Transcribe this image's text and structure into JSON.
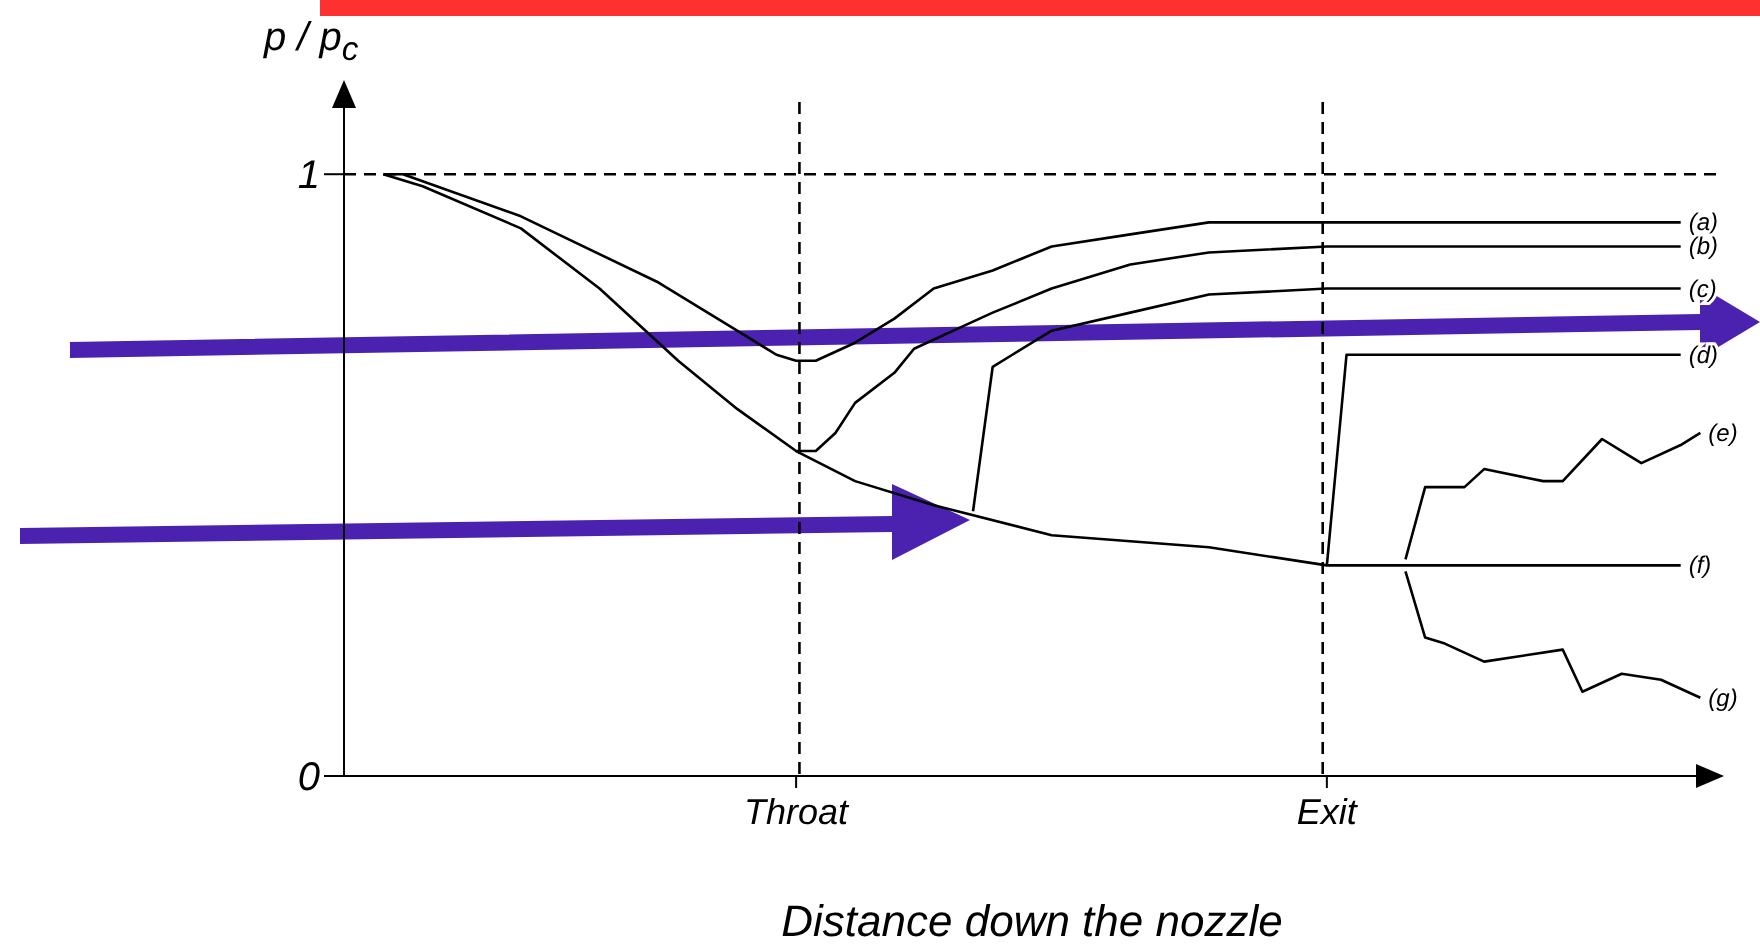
{
  "chart_data": {
    "type": "line",
    "ylabel": "p / p$_{c}$",
    "xlabel": "Distance down the nozzle",
    "categories": [
      null,
      null,
      null,
      null,
      null,
      null,
      null,
      null,
      null,
      null,
      null,
      null,
      null,
      null,
      null,
      null,
      null,
      null,
      null,
      null,
      null,
      null,
      null,
      "Throat",
      null,
      null,
      null,
      null,
      null,
      null,
      null,
      null,
      null,
      null,
      null,
      null,
      null,
      null,
      null,
      null,
      null,
      null,
      null,
      null,
      null,
      null,
      null,
      null,
      null,
      null,
      "Exit",
      null,
      null,
      null,
      null,
      null,
      null,
      null,
      null,
      null,
      null,
      null,
      null,
      null,
      null,
      null,
      null,
      null,
      null,
      null,
      null
    ],
    "ylim": [
      0,
      1.12
    ],
    "yticks": [
      0,
      1
    ],
    "line_style": "solid",
    "ref_lines": [
      {
        "axis": "y",
        "value": 1,
        "color": "#000000",
        "line_style": "dashed"
      },
      {
        "axis": "x",
        "value": "Throat",
        "color": "#000000",
        "line_style": "dashed"
      },
      {
        "axis": "x",
        "value": "Exit",
        "color": "#000000",
        "line_style": "dashed"
      }
    ],
    "series": [
      {
        "name": "(a)",
        "color": "#000000",
        "values": [
          null,
          null,
          1.0,
          1.0,
          null,
          null,
          null,
          null,
          null,
          0.93,
          null,
          null,
          null,
          null,
          null,
          null,
          0.82,
          null,
          null,
          null,
          0.74,
          null,
          0.7,
          0.69,
          0.69,
          null,
          0.72,
          null,
          0.76,
          null,
          0.81,
          null,
          null,
          0.84,
          null,
          null,
          0.88,
          null,
          null,
          null,
          0.9,
          null,
          null,
          null,
          0.92,
          null,
          null,
          null,
          null,
          null,
          0.92,
          null,
          null,
          null,
          null,
          null,
          null,
          null,
          null,
          null,
          null,
          null,
          null,
          null,
          null,
          null,
          null,
          null,
          0.92,
          null,
          null
        ]
      },
      {
        "name": "(b)",
        "color": "#000000",
        "values": [
          null,
          null,
          1.0,
          null,
          0.98,
          null,
          null,
          null,
          null,
          0.91,
          null,
          null,
          null,
          0.81,
          null,
          null,
          null,
          0.69,
          null,
          null,
          0.61,
          null,
          null,
          0.54,
          0.54,
          0.57,
          0.62,
          null,
          0.67,
          0.71,
          null,
          0.74,
          null,
          0.77,
          null,
          null,
          0.81,
          null,
          null,
          null,
          0.85,
          null,
          null,
          null,
          0.87,
          null,
          null,
          null,
          null,
          null,
          0.88,
          null,
          null,
          null,
          null,
          null,
          null,
          null,
          null,
          null,
          null,
          null,
          null,
          null,
          null,
          null,
          null,
          null,
          0.88,
          null,
          null
        ]
      },
      {
        "name": "(c)",
        "color": "#000000",
        "values": [
          null,
          null,
          null,
          null,
          null,
          null,
          null,
          null,
          null,
          null,
          null,
          null,
          null,
          null,
          null,
          null,
          null,
          null,
          null,
          null,
          null,
          null,
          null,
          null,
          null,
          null,
          null,
          null,
          null,
          null,
          null,
          null,
          0.44,
          0.68,
          0.7,
          null,
          0.74,
          null,
          null,
          null,
          0.77,
          null,
          null,
          null,
          0.8,
          null,
          null,
          null,
          null,
          null,
          0.81,
          null,
          null,
          null,
          null,
          null,
          null,
          null,
          null,
          null,
          null,
          null,
          null,
          null,
          null,
          null,
          null,
          null,
          0.81,
          null,
          null
        ]
      },
      {
        "name": "(d)",
        "color": "#000000",
        "values": [
          null,
          null,
          null,
          null,
          null,
          null,
          null,
          null,
          null,
          null,
          null,
          null,
          null,
          null,
          null,
          null,
          null,
          null,
          null,
          null,
          null,
          null,
          null,
          null,
          null,
          null,
          null,
          null,
          null,
          null,
          null,
          null,
          null,
          null,
          null,
          null,
          null,
          null,
          null,
          null,
          null,
          null,
          null,
          null,
          null,
          null,
          null,
          null,
          null,
          null,
          0.35,
          0.7,
          null,
          null,
          null,
          null,
          null,
          null,
          null,
          null,
          null,
          null,
          null,
          null,
          null,
          null,
          null,
          null,
          0.7,
          null,
          null
        ]
      },
      {
        "name": "(e)",
        "color": "#000000",
        "values": [
          null,
          null,
          null,
          null,
          null,
          null,
          null,
          null,
          null,
          null,
          null,
          null,
          null,
          null,
          null,
          null,
          null,
          null,
          null,
          null,
          null,
          null,
          null,
          null,
          null,
          null,
          null,
          null,
          null,
          null,
          null,
          null,
          null,
          null,
          null,
          null,
          null,
          null,
          null,
          null,
          null,
          null,
          null,
          null,
          null,
          null,
          null,
          null,
          null,
          null,
          null,
          null,
          null,
          null,
          0.36,
          0.48,
          null,
          0.48,
          0.51,
          null,
          null,
          0.49,
          0.49,
          null,
          0.56,
          0.54,
          0.52,
          null,
          0.55,
          0.57,
          null
        ]
      },
      {
        "name": "(f)",
        "color": "#000000",
        "values": [
          null,
          null,
          null,
          null,
          null,
          null,
          null,
          null,
          null,
          null,
          null,
          null,
          null,
          null,
          null,
          null,
          null,
          null,
          null,
          null,
          null,
          null,
          null,
          0.54,
          null,
          null,
          0.49,
          null,
          null,
          null,
          0.45,
          null,
          null,
          null,
          null,
          null,
          0.4,
          null,
          null,
          null,
          null,
          null,
          null,
          null,
          0.38,
          null,
          null,
          null,
          null,
          null,
          0.35,
          null,
          null,
          null,
          null,
          null,
          null,
          null,
          null,
          null,
          null,
          null,
          null,
          null,
          null,
          null,
          null,
          null,
          0.35,
          null,
          null
        ]
      },
      {
        "name": "(g)",
        "color": "#000000",
        "values": [
          null,
          null,
          null,
          null,
          null,
          null,
          null,
          null,
          null,
          null,
          null,
          null,
          null,
          null,
          null,
          null,
          null,
          null,
          null,
          null,
          null,
          null,
          null,
          null,
          null,
          null,
          null,
          null,
          null,
          null,
          null,
          null,
          null,
          null,
          null,
          null,
          null,
          null,
          null,
          null,
          null,
          null,
          null,
          null,
          null,
          null,
          null,
          null,
          null,
          null,
          null,
          null,
          null,
          null,
          0.34,
          0.23,
          0.22,
          null,
          0.19,
          null,
          null,
          null,
          0.21,
          0.14,
          null,
          0.17,
          null,
          0.16,
          null,
          0.13,
          null
        ]
      }
    ]
  }
}
